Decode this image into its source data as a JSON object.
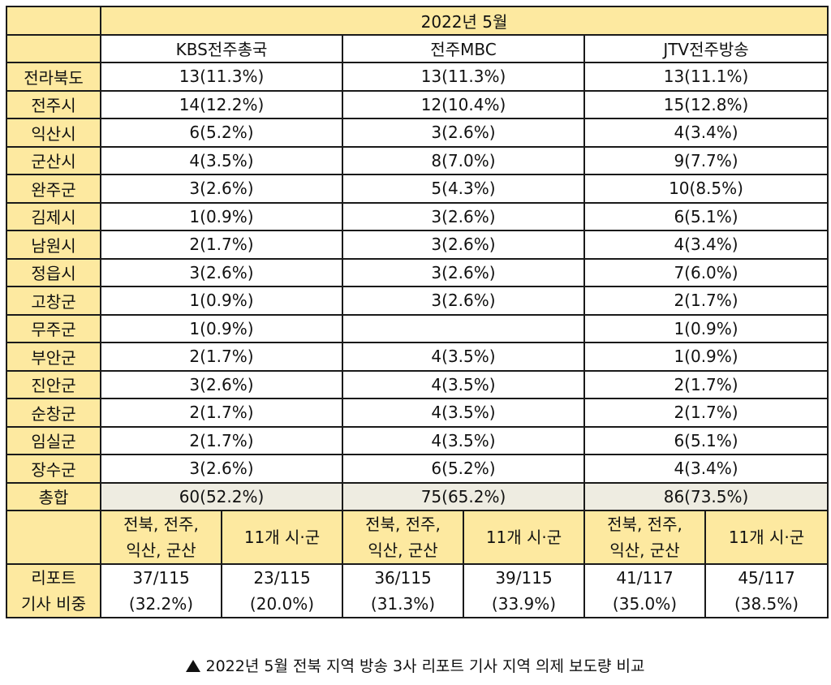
{
  "header": {
    "period": "2022년 5월",
    "stations": [
      "KBS전주총국",
      "전주MBC",
      "JTV전주방송"
    ]
  },
  "rows": [
    {
      "region": "전라북도",
      "kbs": "13(11.3%)",
      "mbc": "13(11.3%)",
      "jtv": "13(11.1%)"
    },
    {
      "region": "전주시",
      "kbs": "14(12.2%)",
      "mbc": "12(10.4%)",
      "jtv": "15(12.8%)"
    },
    {
      "region": "익산시",
      "kbs": "6(5.2%)",
      "mbc": "3(2.6%)",
      "jtv": "4(3.4%)"
    },
    {
      "region": "군산시",
      "kbs": "4(3.5%)",
      "mbc": "8(7.0%)",
      "jtv": "9(7.7%)"
    },
    {
      "region": "완주군",
      "kbs": "3(2.6%)",
      "mbc": "5(4.3%)",
      "jtv": "10(8.5%)"
    },
    {
      "region": "김제시",
      "kbs": "1(0.9%)",
      "mbc": "3(2.6%)",
      "jtv": "6(5.1%)"
    },
    {
      "region": "남원시",
      "kbs": "2(1.7%)",
      "mbc": "3(2.6%)",
      "jtv": "4(3.4%)"
    },
    {
      "region": "정읍시",
      "kbs": "3(2.6%)",
      "mbc": "3(2.6%)",
      "jtv": "7(6.0%)"
    },
    {
      "region": "고창군",
      "kbs": "1(0.9%)",
      "mbc": "3(2.6%)",
      "jtv": "2(1.7%)"
    },
    {
      "region": "무주군",
      "kbs": "1(0.9%)",
      "mbc": "",
      "jtv": "1(0.9%)"
    },
    {
      "region": "부안군",
      "kbs": "2(1.7%)",
      "mbc": "4(3.5%)",
      "jtv": "1(0.9%)"
    },
    {
      "region": "진안군",
      "kbs": "3(2.6%)",
      "mbc": "4(3.5%)",
      "jtv": "2(1.7%)"
    },
    {
      "region": "순창군",
      "kbs": "2(1.7%)",
      "mbc": "4(3.5%)",
      "jtv": "2(1.7%)"
    },
    {
      "region": "임실군",
      "kbs": "2(1.7%)",
      "mbc": "4(3.5%)",
      "jtv": "6(5.1%)"
    },
    {
      "region": "장수군",
      "kbs": "3(2.6%)",
      "mbc": "6(5.2%)",
      "jtv": "4(3.4%)"
    }
  ],
  "total": {
    "label": "총합",
    "kbs": "60(52.2%)",
    "mbc": "75(65.2%)",
    "jtv": "86(73.5%)"
  },
  "group_header": {
    "major_line1": "전북, 전주,",
    "major_line2": "익산, 군산",
    "minor": "11개 시·군"
  },
  "report": {
    "label_line1": "리포트",
    "label_line2": "기사 비중",
    "cells": [
      {
        "count": "37/115",
        "pct": "(32.2%)"
      },
      {
        "count": "23/115",
        "pct": "(20.0%)"
      },
      {
        "count": "36/115",
        "pct": "(31.3%)"
      },
      {
        "count": "39/115",
        "pct": "(33.9%)"
      },
      {
        "count": "41/117",
        "pct": "(35.0%)"
      },
      {
        "count": "45/117",
        "pct": "(38.5%)"
      }
    ]
  },
  "caption": "2022년 5월 전북 지역 방송 3사 리포트 기사 지역 의제 보도량 비교"
}
